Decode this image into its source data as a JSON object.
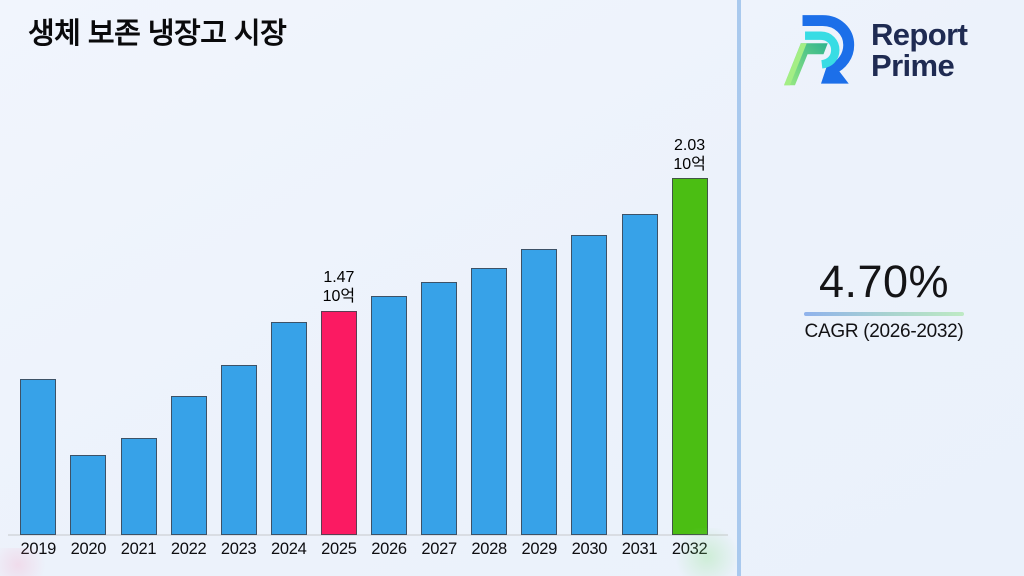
{
  "title": "생체 보존 냉장고 시장",
  "brand": {
    "line1": "Report",
    "line2": "Prime"
  },
  "cagr": {
    "value": "4.70%",
    "label": "CAGR (2026-2032)"
  },
  "chart_data": {
    "type": "bar",
    "title": "생체 보존 냉장고 시장",
    "unit": "10억",
    "categories": [
      "2019",
      "2020",
      "2021",
      "2022",
      "2023",
      "2024",
      "2025",
      "2026",
      "2027",
      "2028",
      "2029",
      "2030",
      "2031",
      "2032"
    ],
    "values": [
      1.18,
      0.86,
      0.93,
      1.11,
      1.24,
      1.42,
      1.47,
      1.53,
      1.59,
      1.65,
      1.73,
      1.79,
      1.88,
      2.03
    ],
    "ylim": [
      0.52,
      2.28
    ],
    "grid": false,
    "legend": false,
    "default_color": "#37A2E8",
    "highlights": {
      "2025": "#FB1A62",
      "2032": "#4BBE13"
    },
    "annotations": [
      {
        "category": "2025",
        "lines": [
          "1.47",
          "10억"
        ]
      },
      {
        "category": "2032",
        "lines": [
          "2.03",
          "10억"
        ]
      }
    ]
  }
}
